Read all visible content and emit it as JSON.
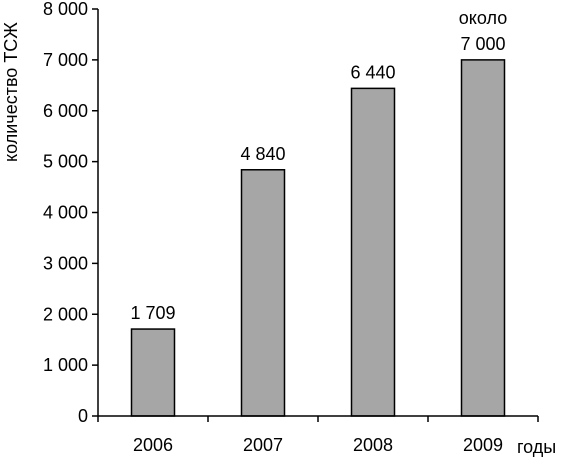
{
  "chart_data": {
    "type": "bar",
    "categories": [
      "2006",
      "2007",
      "2008",
      "2009"
    ],
    "values": [
      1709,
      4840,
      6440,
      7000
    ],
    "data_labels": [
      [
        "1 709"
      ],
      [
        "4 840"
      ],
      [
        "6 440"
      ],
      [
        "около",
        "7 000"
      ]
    ],
    "xlabel": "годы",
    "ylabel": "количество ТСЖ",
    "ylim": [
      0,
      8000
    ],
    "y_ticks": [
      0,
      1000,
      2000,
      3000,
      4000,
      5000,
      6000,
      7000,
      8000
    ],
    "y_tick_labels": [
      "0",
      "1 000",
      "2 000",
      "3 000",
      "4 000",
      "5 000",
      "6 000",
      "7 000",
      "8 000"
    ],
    "grid": false,
    "bar_color": "#a6a6a6",
    "bar_edge_color": "#000000"
  }
}
